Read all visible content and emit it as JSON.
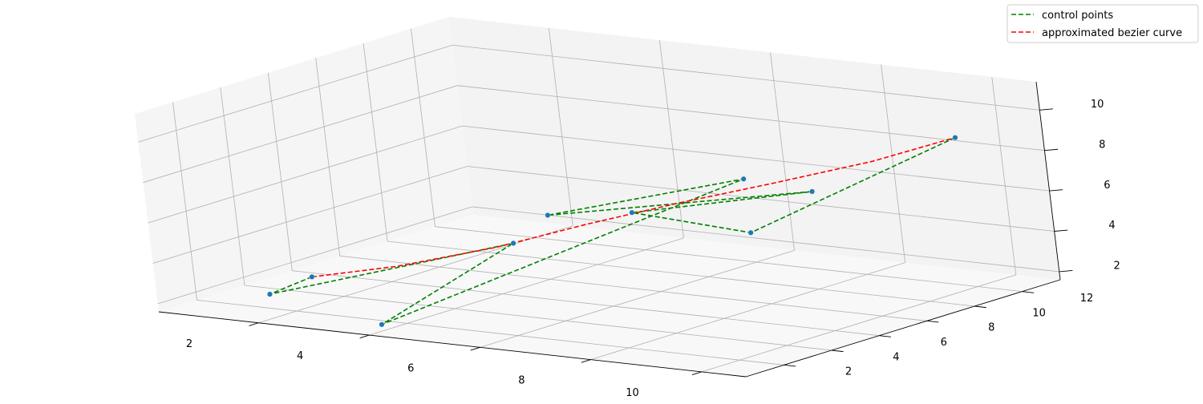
{
  "chart_data": {
    "type": "line",
    "projection": "3d",
    "title": "",
    "xlabel": "",
    "ylabel": "",
    "zlabel": "",
    "xlim": [
      0.2,
      10.8
    ],
    "ylim": [
      0.4,
      13.6
    ],
    "zlim": [
      1.6,
      11.4
    ],
    "x_ticks": [
      2,
      4,
      6,
      8,
      10
    ],
    "y_ticks": [
      2,
      4,
      6,
      8,
      10,
      12
    ],
    "z_ticks": [
      2,
      4,
      6,
      8,
      10
    ],
    "grid": true,
    "legend": {
      "position": "top-right",
      "entries": [
        "control points",
        "approximated bezier curve"
      ]
    },
    "colors": {
      "control": "#008000",
      "bezier": "#ff0000",
      "markers": "#1f77b4"
    },
    "series": [
      {
        "name": "control points",
        "style": "dashed",
        "points": [
          [
            1,
            5,
            1.9
          ],
          [
            2,
            1,
            2.8
          ],
          [
            2.5,
            10,
            2.2
          ],
          [
            3.8,
            1.4,
            1.7
          ],
          [
            5.5,
            13,
            5.2
          ],
          [
            5,
            6,
            5.8
          ],
          [
            6.5,
            13.5,
            4.7
          ],
          [
            7,
            5,
            6.9
          ],
          [
            8,
            7.5,
            5.3
          ],
          [
            9.6,
            12.7,
            8.6
          ]
        ]
      },
      {
        "name": "approximated bezier curve",
        "style": "dashed",
        "points": [
          [
            1,
            5,
            1.9
          ],
          [
            2.4,
            5.4,
            2.7
          ],
          [
            3.8,
            6.4,
            3.7
          ],
          [
            5.1,
            7.4,
            4.9
          ],
          [
            6.4,
            8.3,
            6.0
          ],
          [
            7.7,
            9.3,
            7.0
          ],
          [
            8.8,
            11.0,
            7.8
          ],
          [
            9.6,
            12.7,
            8.6
          ]
        ]
      }
    ]
  }
}
